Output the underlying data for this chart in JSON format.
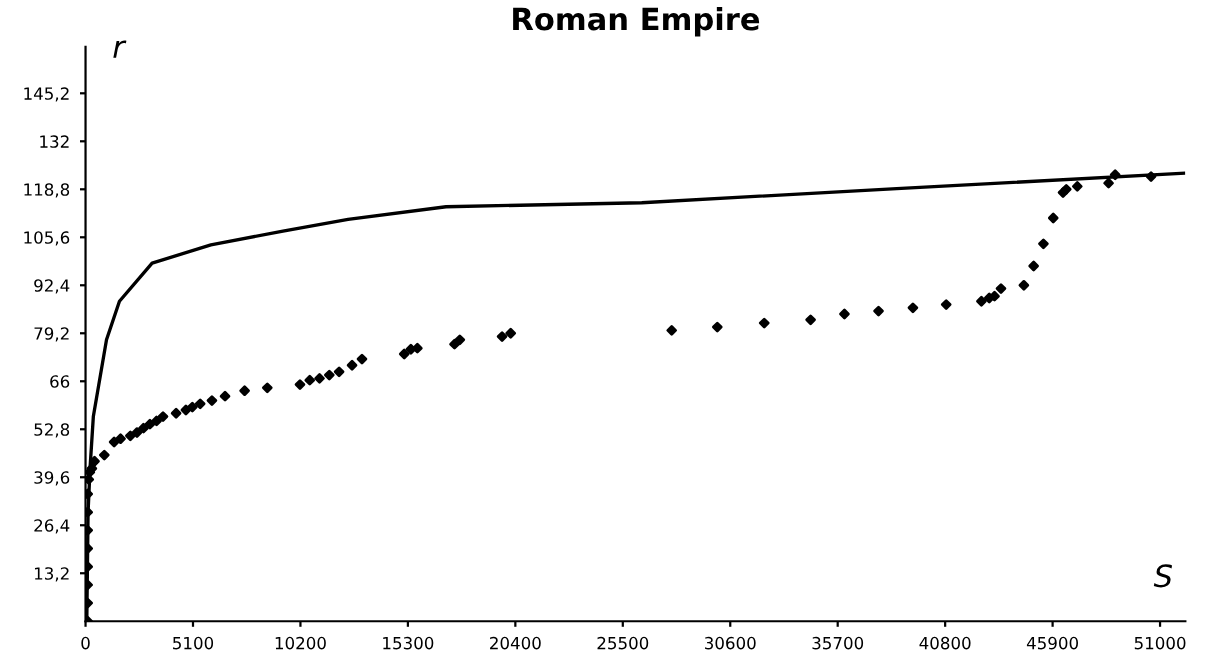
{
  "chart_data": {
    "type": "scatter",
    "title": "Roman Empire",
    "xlabel": "S",
    "ylabel": "r",
    "xlim": [
      0,
      52200
    ],
    "ylim": [
      0,
      158
    ],
    "xticks": [
      0,
      5100,
      10200,
      15300,
      20400,
      25500,
      30600,
      35700,
      40800,
      45900,
      51000
    ],
    "yticks": [
      {
        "value": 13.2,
        "label": "13,2"
      },
      {
        "value": 26.4,
        "label": "26,4"
      },
      {
        "value": 39.6,
        "label": "39,6"
      },
      {
        "value": 52.8,
        "label": "52,8"
      },
      {
        "value": 66,
        "label": "66"
      },
      {
        "value": 79.2,
        "label": "79,2"
      },
      {
        "value": 92.4,
        "label": "92,4"
      },
      {
        "value": 105.6,
        "label": "105,6"
      },
      {
        "value": 118.8,
        "label": "118,8"
      },
      {
        "value": 132,
        "label": "132"
      },
      {
        "value": 145.2,
        "label": "145,2"
      }
    ],
    "grid": false,
    "legend": false,
    "series": [
      {
        "type": "line",
        "color": "#000000",
        "marker": "none",
        "line_style": "solid",
        "x": [
          60,
          120,
          215,
          370,
          995,
          1610,
          3160,
          5950,
          9370,
          12460,
          17110,
          26400,
          38500,
          52120
        ],
        "values": [
          0,
          30,
          42.2,
          56.3,
          77.4,
          88,
          98.5,
          103.5,
          107.3,
          110.5,
          114,
          115.1,
          119,
          123.2
        ]
      },
      {
        "color": "#000000",
        "marker": "diamond",
        "x": [
          100,
          100,
          100,
          100,
          100,
          100,
          100,
          100,
          150,
          200,
          300,
          427,
          891,
          1356,
          1662,
          2127,
          2442,
          2749,
          3055,
          3371,
          3677,
          4299,
          4764,
          5070,
          5442,
          5999,
          6621,
          7550,
          8627,
          10178,
          10642,
          11106,
          11570,
          12035,
          12650,
          13121,
          15126,
          15442,
          15749,
          17513,
          17764,
          19770,
          20179,
          27821,
          29985,
          32213,
          34414,
          36020,
          37638,
          39270,
          40850,
          42521,
          42893,
          43143,
          43450,
          44536,
          45000,
          45464,
          45930,
          46394,
          46549,
          47072,
          48557,
          48869,
          50572
        ],
        "values": [
          0,
          5,
          10,
          15,
          20,
          25,
          30,
          35,
          39,
          41,
          42,
          44.0,
          45.7,
          49.3,
          50.2,
          51.0,
          51.9,
          53.1,
          54.2,
          55.1,
          56.3,
          57.2,
          58.1,
          58.9,
          59.8,
          60.7,
          61.9,
          63.4,
          64.2,
          65.1,
          66.3,
          66.8,
          67.7,
          68.6,
          70.4,
          72.1,
          73.5,
          74.8,
          75.1,
          76.2,
          77.4,
          78.3,
          79.2,
          80.0,
          80.9,
          82.0,
          82.9,
          84.5,
          85.3,
          86.2,
          87.1,
          88.0,
          88.9,
          89.4,
          91.5,
          92.4,
          97.7,
          103.8,
          110.9,
          117.9,
          118.8,
          119.6,
          120.5,
          122.8,
          122.3
        ]
      }
    ]
  }
}
